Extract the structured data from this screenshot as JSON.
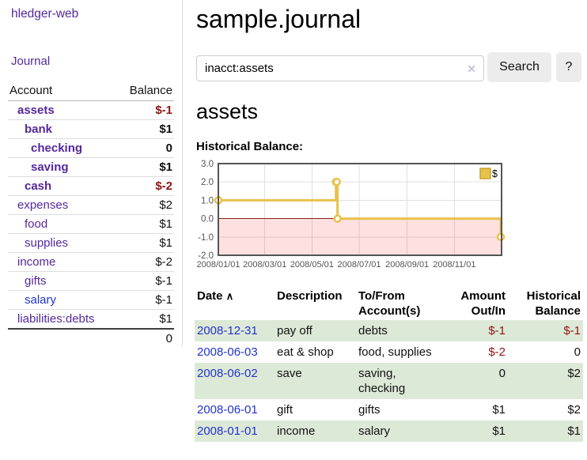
{
  "brand": "hledger-web",
  "nav": {
    "journal": "Journal"
  },
  "accounts": {
    "headers": {
      "account": "Account",
      "balance": "Balance"
    },
    "rows": [
      {
        "name": "assets",
        "balance": "$-1"
      },
      {
        "name": "bank",
        "balance": "$1"
      },
      {
        "name": "checking",
        "balance": "0"
      },
      {
        "name": "saving",
        "balance": "$1"
      },
      {
        "name": "cash",
        "balance": "$-2"
      },
      {
        "name": "expenses",
        "balance": "$2"
      },
      {
        "name": "food",
        "balance": "$1"
      },
      {
        "name": "supplies",
        "balance": "$1"
      },
      {
        "name": "income",
        "balance": "$-2"
      },
      {
        "name": "gifts",
        "balance": "$-1"
      },
      {
        "name": "salary",
        "balance": "$-1"
      },
      {
        "name": "liabilities:debts",
        "balance": "$1"
      }
    ],
    "total": "0"
  },
  "header": {
    "title": "sample.journal"
  },
  "search": {
    "value": "inacct:assets",
    "clear_icon": "✕",
    "button_label": "Search",
    "help_label": "?"
  },
  "account_page": {
    "heading": "assets",
    "chart_title": "Historical Balance:"
  },
  "chart_data": {
    "type": "line",
    "step": true,
    "title": "Historical Balance",
    "series": [
      {
        "name": "$",
        "color": "#e8c24a",
        "points": [
          [
            "2008-01-01",
            1
          ],
          [
            "2008-06-01",
            2
          ],
          [
            "2008-06-02",
            2
          ],
          [
            "2008-06-03",
            0
          ],
          [
            "2008-12-31",
            -1
          ]
        ]
      }
    ],
    "point_days": [
      0,
      152,
      153,
      154,
      365
    ],
    "point_values": [
      1,
      2,
      2,
      0,
      -1
    ],
    "x_ticks": [
      "2008/01/01",
      "2008/03/01",
      "2008/05/01",
      "2008/07/01",
      "2008/09/01",
      "2008/11/01"
    ],
    "x_tick_days": [
      0,
      60,
      121,
      182,
      244,
      305
    ],
    "x_grid_days": [
      60,
      121,
      182,
      244,
      305
    ],
    "x_range_days": [
      0,
      366
    ],
    "y_ticks": [
      3.0,
      2.0,
      1.0,
      0.0,
      -1.0,
      -2.0
    ],
    "ylim": [
      -2,
      3
    ],
    "grid": true,
    "legend": {
      "label": "$",
      "position": "top-right"
    },
    "colors": {
      "line": "#e8c24a",
      "negative_region_fill": "rgba(255,0,0,0.12)",
      "zero_line": "#8b1a1a",
      "gridline": "#e0e0e0",
      "frame": "#545454",
      "tick_label": "#545454"
    }
  },
  "register": {
    "headers": {
      "date": "Date",
      "sort_icon": "∧",
      "description": "Description",
      "accounts_l1": "To/From",
      "accounts_l2": "Account(s)",
      "amount_l1": "Amount",
      "amount_l2": "Out/In",
      "balance_l1": "Historical",
      "balance_l2": "Balance"
    },
    "rows": [
      {
        "date": "2008-12-31",
        "description": "pay off",
        "accounts": "debts",
        "amount": "$-1",
        "balance": "$-1"
      },
      {
        "date": "2008-06-03",
        "description": "eat & shop",
        "accounts": "food, supplies",
        "amount": "$-2",
        "balance": "0"
      },
      {
        "date": "2008-06-02",
        "description": "save",
        "accounts": "saving, checking",
        "amount": "0",
        "balance": "$2"
      },
      {
        "date": "2008-06-01",
        "description": "gift",
        "accounts": "gifts",
        "amount": "$1",
        "balance": "$2"
      },
      {
        "date": "2008-01-01",
        "description": "income",
        "accounts": "salary",
        "amount": "$1",
        "balance": "$1"
      }
    ]
  },
  "colors": {
    "link_purple": "#54289b",
    "link_blue": "#2233cc",
    "negative_strong": "#8e1515",
    "negative_muted": "#c28585",
    "row_stripe_green": "#dde9d7",
    "button_gray": "#ececec"
  }
}
